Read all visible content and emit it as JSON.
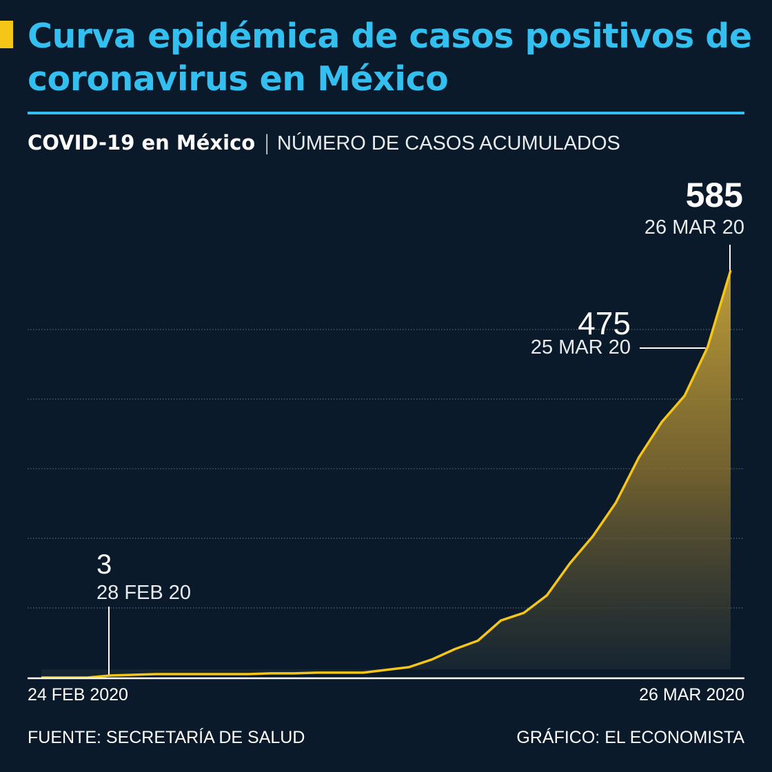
{
  "header": {
    "title": "Curva epidémica de casos positivos de coronavirus en México",
    "subtitle_bold": "COVID-19 en México",
    "subtitle_separator": "|",
    "subtitle_thin": "NÚMERO DE CASOS ACUMULADOS"
  },
  "colors": {
    "background": "#0a1a2a",
    "title": "#33bff0",
    "accent": "#f5c518",
    "line": "#f5c518"
  },
  "chart_data": {
    "type": "area",
    "title": "",
    "xlabel": "",
    "ylabel": "",
    "x_tick_labels": [
      "24 FEB 2020",
      "26 MAR 2020"
    ],
    "ylim": [
      0,
      585
    ],
    "grid": true,
    "grid_values": [
      100,
      200,
      300,
      400,
      500
    ],
    "x": [
      "25 FEB",
      "26 FEB",
      "27 FEB",
      "28 FEB",
      "29 FEB",
      "1 MAR",
      "2 MAR",
      "3 MAR",
      "4 MAR",
      "5 MAR",
      "6 MAR",
      "7 MAR",
      "8 MAR",
      "9 MAR",
      "10 MAR",
      "11 MAR",
      "12 MAR",
      "13 MAR",
      "14 MAR",
      "15 MAR",
      "16 MAR",
      "17 MAR",
      "18 MAR",
      "19 MAR",
      "20 MAR",
      "21 MAR",
      "22 MAR",
      "23 MAR",
      "24 MAR",
      "25 MAR",
      "26 MAR"
    ],
    "values": [
      0,
      0,
      0,
      3,
      4,
      5,
      5,
      5,
      5,
      5,
      6,
      6,
      7,
      7,
      7,
      11,
      15,
      26,
      41,
      53,
      82,
      93,
      118,
      164,
      203,
      251,
      316,
      367,
      405,
      475,
      585
    ],
    "annotations": [
      {
        "value": "585",
        "date": "26 MAR 20"
      },
      {
        "value": "475",
        "date": "25 MAR 20"
      },
      {
        "value": "3",
        "date": "28 FEB 20"
      }
    ]
  },
  "footer": {
    "source": "FUENTE: SECRETARÍA DE SALUD",
    "credit": "GRÁFICO: EL ECONOMISTA"
  }
}
